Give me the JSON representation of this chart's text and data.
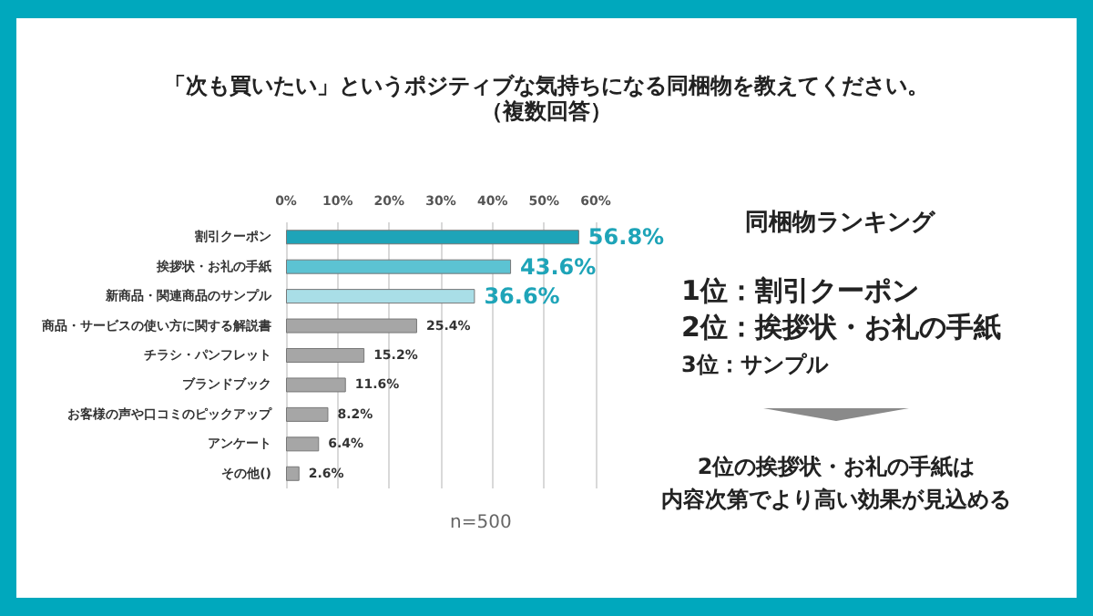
{
  "chart_data": {
    "type": "bar",
    "orientation": "horizontal",
    "title": "「次も買いたい」というポジティブな気持ちになる同梱物を教えてください。",
    "subtitle": "（複数回答）",
    "categories": [
      "割引クーポン",
      "挨拶状・お礼の手紙",
      "新商品・関連商品のサンプル",
      "商品・サービスの使い方に関する解説書",
      "チラシ・パンフレット",
      "ブランドブック",
      "お客様の声や口コミのピックアップ",
      "アンケート",
      "その他()"
    ],
    "values": [
      56.8,
      43.6,
      36.6,
      25.4,
      15.2,
      11.6,
      8.2,
      6.4,
      2.6
    ],
    "colors": [
      "#1ea4b8",
      "#5cc3d3",
      "#a9dee7",
      "#a6a6a6",
      "#a6a6a6",
      "#a6a6a6",
      "#a6a6a6",
      "#a6a6a6",
      "#a6a6a6"
    ],
    "value_labels": [
      "56.8%",
      "43.6%",
      "36.6%",
      "25.4%",
      "15.2%",
      "11.6%",
      "8.2%",
      "6.4%",
      "2.6%"
    ],
    "xlim": [
      0,
      60
    ],
    "xticks": [
      {
        "value": 0,
        "label": "0%"
      },
      {
        "value": 10,
        "label": "10%"
      },
      {
        "value": 20,
        "label": "20%"
      },
      {
        "value": 30,
        "label": "30%"
      },
      {
        "value": 40,
        "label": "40%"
      },
      {
        "value": 50,
        "label": "50%"
      },
      {
        "value": 60,
        "label": "60%"
      }
    ],
    "grid": "x",
    "annotations": [
      "n=500",
      "同梱物ランキング",
      "1位：割引クーポン",
      "2位：挨拶状・お礼の手紙",
      "3位：サンプル",
      "2位の挨拶状・お礼の手紙は",
      "内容次第でより高い効果が見込める"
    ]
  }
}
